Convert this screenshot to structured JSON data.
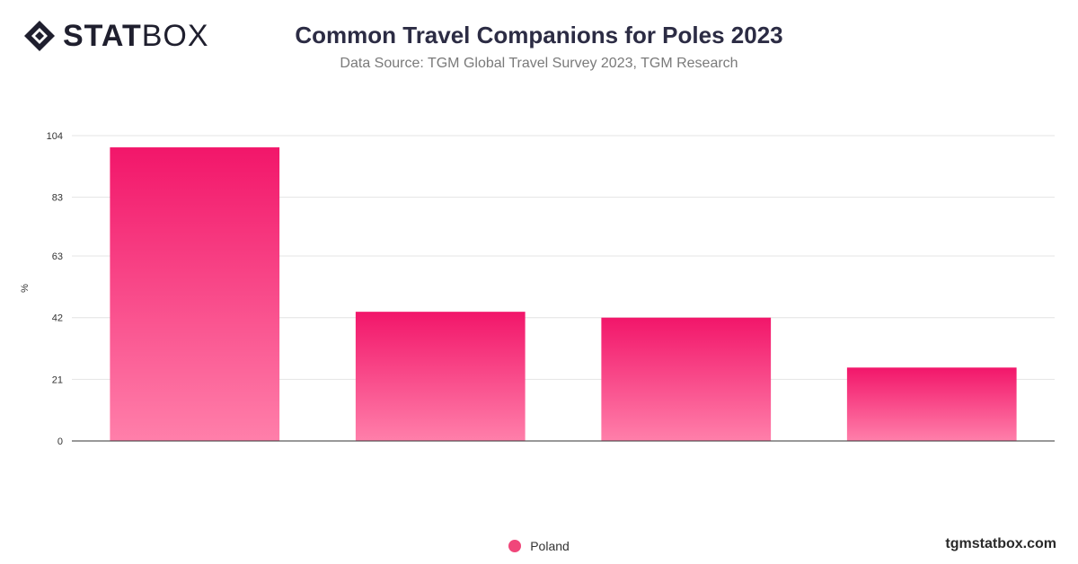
{
  "brand": {
    "logo_bold": "STAT",
    "logo_light": "BOX",
    "site": "tgmstatbox.com"
  },
  "colors": {
    "bar_top": "#f2166a",
    "bar_bottom": "#ff7faa",
    "legend": "#f0467a",
    "grid": "#e4e4e4",
    "axis": "#333333"
  },
  "chart_data": {
    "type": "bar",
    "title": "Common Travel Companions for Poles 2023",
    "subtitle": "Data Source: TGM Global Travel Survey 2023, TGM Research",
    "ylabel": "%",
    "ylim": [
      0,
      104
    ],
    "yticks": [
      0,
      21,
      42,
      63,
      83,
      104
    ],
    "categories": [
      "",
      "",
      "",
      ""
    ],
    "series": [
      {
        "name": "Poland",
        "values": [
          100,
          44,
          42,
          25
        ]
      }
    ],
    "legend": "bottom-center",
    "grid": true
  }
}
